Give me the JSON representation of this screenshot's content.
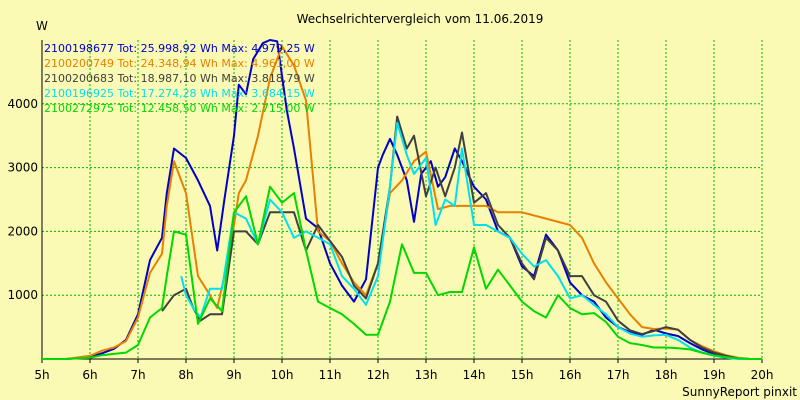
{
  "chart_data": {
    "type": "line",
    "title": "Wechselrichtervergleich vom 11.06.2019",
    "ylabel": "W",
    "footer": "SunnyReport pinxit",
    "xlim": [
      5,
      20
    ],
    "ylim": [
      0,
      5000
    ],
    "x_ticks": [
      {
        "v": 5,
        "label": "5h"
      },
      {
        "v": 6,
        "label": "6h"
      },
      {
        "v": 7,
        "label": "7h"
      },
      {
        "v": 8,
        "label": "8h"
      },
      {
        "v": 9,
        "label": "9h"
      },
      {
        "v": 10,
        "label": "10h"
      },
      {
        "v": 11,
        "label": "11h"
      },
      {
        "v": 12,
        "label": "12h"
      },
      {
        "v": 13,
        "label": "13h"
      },
      {
        "v": 14,
        "label": "14h"
      },
      {
        "v": 15,
        "label": "15h"
      },
      {
        "v": 16,
        "label": "16h"
      },
      {
        "v": 17,
        "label": "17h"
      },
      {
        "v": 18,
        "label": "18h"
      },
      {
        "v": 19,
        "label": "19h"
      },
      {
        "v": 20,
        "label": "20h"
      }
    ],
    "y_ticks": [
      {
        "v": 1000,
        "label": "1000"
      },
      {
        "v": 2000,
        "label": "2000"
      },
      {
        "v": 3000,
        "label": "3000"
      },
      {
        "v": 4000,
        "label": "4000"
      }
    ],
    "grid": true,
    "legend_position": "top-left",
    "series": [
      {
        "name": "2100198677 Tot: 25.998,92 Wh Max: 4.979,25 W",
        "color": "#0000c8",
        "x": [
          5,
          5.5,
          6,
          6.25,
          6.5,
          6.75,
          7,
          7.25,
          7.5,
          7.6,
          7.75,
          8,
          8.25,
          8.5,
          8.65,
          8.8,
          9,
          9.1,
          9.25,
          9.4,
          9.6,
          9.75,
          9.9,
          10.1,
          10.25,
          10.5,
          10.75,
          11,
          11.25,
          11.5,
          11.75,
          12,
          12.1,
          12.25,
          12.4,
          12.6,
          12.75,
          12.9,
          13.1,
          13.25,
          13.4,
          13.6,
          13.75,
          14,
          14.25,
          14.5,
          14.75,
          15,
          15.25,
          15.5,
          15.75,
          16,
          16.25,
          16.5,
          16.75,
          17,
          17.25,
          17.5,
          17.75,
          18,
          18.25,
          18.5,
          18.75,
          19,
          19.25,
          19.5,
          19.75,
          20
        ],
        "y": [
          0,
          0,
          30,
          90,
          160,
          300,
          700,
          1550,
          1900,
          2600,
          3300,
          3150,
          2800,
          2400,
          1700,
          2500,
          3500,
          4300,
          4150,
          4700,
          4950,
          5000,
          4980,
          3900,
          3300,
          2200,
          2050,
          1500,
          1150,
          900,
          1250,
          3000,
          3200,
          3450,
          3200,
          2800,
          2150,
          2900,
          3100,
          2700,
          2850,
          3300,
          3100,
          2700,
          2500,
          2000,
          1900,
          1450,
          1300,
          1950,
          1700,
          1200,
          1000,
          900,
          650,
          500,
          420,
          380,
          460,
          400,
          360,
          250,
          150,
          80,
          40,
          10,
          0,
          0
        ]
      },
      {
        "name": "2100200749 Tot: 24.348,94 Wh Max: 4.961,00 W",
        "color": "#e88000",
        "x": [
          5,
          5.5,
          6,
          6.25,
          6.5,
          6.75,
          7,
          7.25,
          7.5,
          7.6,
          7.75,
          8,
          8.25,
          8.5,
          8.65,
          8.8,
          9,
          9.1,
          9.25,
          9.5,
          9.75,
          10,
          10.25,
          10.5,
          10.75,
          11,
          11.25,
          11.5,
          11.75,
          12,
          12.25,
          12.5,
          12.75,
          13,
          13.25,
          13.5,
          13.75,
          14,
          14.25,
          14.5,
          14.75,
          15,
          15.5,
          16,
          16.25,
          16.5,
          16.75,
          17,
          17.25,
          17.5,
          17.75,
          18,
          18.25,
          18.5,
          18.75,
          19,
          19.25,
          19.5,
          19.75,
          20
        ],
        "y": [
          0,
          0,
          50,
          130,
          180,
          280,
          650,
          1350,
          1650,
          2400,
          3100,
          2600,
          1300,
          1000,
          800,
          1300,
          2100,
          2600,
          2800,
          3500,
          4400,
          4900,
          4600,
          4050,
          2000,
          1850,
          1500,
          1200,
          1000,
          1500,
          2600,
          2800,
          3100,
          3250,
          2350,
          2400,
          2400,
          2400,
          2400,
          2300,
          2300,
          2300,
          2200,
          2100,
          1900,
          1500,
          1200,
          950,
          700,
          500,
          470,
          480,
          460,
          300,
          200,
          120,
          60,
          20,
          0,
          0
        ]
      },
      {
        "name": "2100200683 Tot: 18.987,10 Wh Max: 3.818,79 W",
        "color": "#404040",
        "x": [
          7.5,
          7.75,
          8,
          8.15,
          8.3,
          8.5,
          8.75,
          9,
          9.25,
          9.5,
          9.75,
          10,
          10.25,
          10.5,
          10.75,
          11,
          11.25,
          11.5,
          11.75,
          12,
          12.25,
          12.4,
          12.6,
          12.75,
          13,
          13.2,
          13.4,
          13.6,
          13.75,
          14,
          14.25,
          14.5,
          14.75,
          15,
          15.25,
          15.5,
          15.75,
          16,
          16.25,
          16.5,
          16.75,
          17,
          17.25,
          17.5,
          17.75,
          18,
          18.25,
          18.5,
          18.75,
          19,
          19.25,
          19.5,
          19.75,
          20
        ],
        "y": [
          750,
          1000,
          1100,
          800,
          600,
          700,
          700,
          2000,
          2000,
          1800,
          2300,
          2300,
          2300,
          1700,
          2100,
          1850,
          1600,
          1150,
          950,
          1500,
          2700,
          3800,
          3300,
          3500,
          2550,
          3000,
          2550,
          3000,
          3550,
          2450,
          2600,
          2100,
          1900,
          1500,
          1250,
          1900,
          1700,
          1300,
          1300,
          1000,
          900,
          600,
          450,
          390,
          440,
          500,
          460,
          300,
          180,
          100,
          50,
          10,
          0,
          0
        ]
      },
      {
        "name": "2100196925 Tot: 17.274,28 Wh Max: 3.684,15 W",
        "color": "#00e0f0",
        "x": [
          7.9,
          8,
          8.15,
          8.3,
          8.5,
          8.75,
          9,
          9.25,
          9.5,
          9.75,
          10,
          10.25,
          10.5,
          10.75,
          11,
          11.25,
          11.5,
          11.75,
          12,
          12.25,
          12.4,
          12.6,
          12.75,
          13,
          13.2,
          13.4,
          13.6,
          13.75,
          14,
          14.25,
          14.5,
          14.75,
          15,
          15.25,
          15.5,
          15.75,
          16,
          16.25,
          16.5,
          16.75,
          17,
          17.25,
          17.5,
          17.75,
          18,
          18.25,
          18.5,
          18.75,
          19,
          19.25,
          19.5,
          19.75,
          20
        ],
        "y": [
          1300,
          1000,
          800,
          650,
          1100,
          1100,
          2300,
          2200,
          1800,
          2500,
          2300,
          1900,
          2000,
          1900,
          1800,
          1300,
          1100,
          850,
          1300,
          2700,
          3700,
          3200,
          2900,
          3150,
          2100,
          2500,
          2400,
          3300,
          2100,
          2100,
          2000,
          1900,
          1650,
          1450,
          1550,
          1300,
          950,
          1000,
          850,
          700,
          500,
          400,
          350,
          370,
          380,
          300,
          180,
          100,
          50,
          20,
          0,
          0,
          0
        ]
      },
      {
        "name": "2100272975 Tot: 12.458,50 Wh Max: 2.715,00 W",
        "color": "#00d800",
        "x": [
          5,
          5.5,
          6,
          6.25,
          6.5,
          6.75,
          7,
          7.25,
          7.5,
          7.6,
          7.75,
          8,
          8.25,
          8.5,
          8.75,
          9,
          9.25,
          9.5,
          9.75,
          10,
          10.25,
          10.5,
          10.75,
          11,
          11.25,
          11.5,
          11.75,
          12,
          12.25,
          12.5,
          12.75,
          13,
          13.25,
          13.5,
          13.75,
          14,
          14.25,
          14.5,
          14.75,
          15,
          15.25,
          15.5,
          15.75,
          16,
          16.25,
          16.5,
          16.75,
          17,
          17.25,
          17.5,
          17.75,
          18,
          18.25,
          18.5,
          18.75,
          19,
          19.25,
          19.5,
          19.75,
          20
        ],
        "y": [
          0,
          0,
          20,
          60,
          80,
          100,
          220,
          650,
          800,
          1300,
          2000,
          1950,
          550,
          950,
          750,
          2300,
          2550,
          1800,
          2700,
          2450,
          2600,
          1700,
          900,
          800,
          700,
          550,
          380,
          380,
          900,
          1800,
          1350,
          1350,
          1000,
          1050,
          1050,
          1750,
          1100,
          1400,
          1150,
          900,
          750,
          650,
          1000,
          800,
          700,
          720,
          580,
          350,
          250,
          220,
          180,
          180,
          170,
          150,
          100,
          60,
          30,
          10,
          0,
          0
        ]
      }
    ]
  }
}
